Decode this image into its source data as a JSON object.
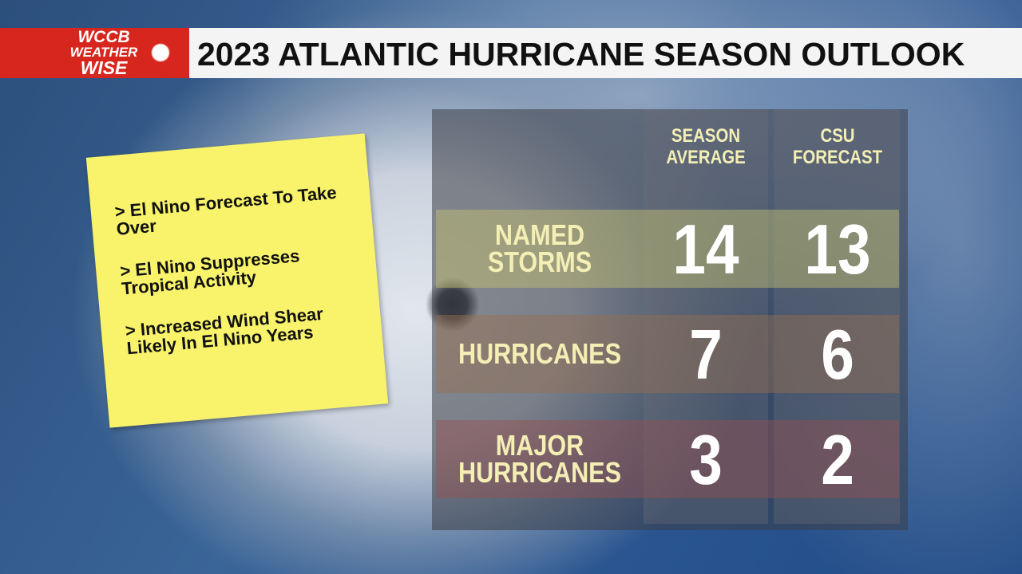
{
  "header": {
    "logo": {
      "line1": "WCCB",
      "line2": "WEATHER",
      "line3": "WISE"
    },
    "title": "2023 ATLANTIC HURRICANE SEASON OUTLOOK"
  },
  "note": {
    "items": [
      "> El Nino Forecast To Take Over",
      "> El Nino Suppresses Tropical Activity",
      "> Increased Wind Shear Likely In El Nino Years"
    ]
  },
  "table": {
    "columns": [
      "SEASON AVERAGE",
      "CSU FORECAST"
    ],
    "rows": [
      {
        "label": "NAMED STORMS",
        "values": [
          14,
          13
        ]
      },
      {
        "label": "HURRICANES",
        "values": [
          7,
          6
        ]
      },
      {
        "label": "MAJOR HURRICANES",
        "values": [
          3,
          2
        ]
      }
    ]
  }
}
